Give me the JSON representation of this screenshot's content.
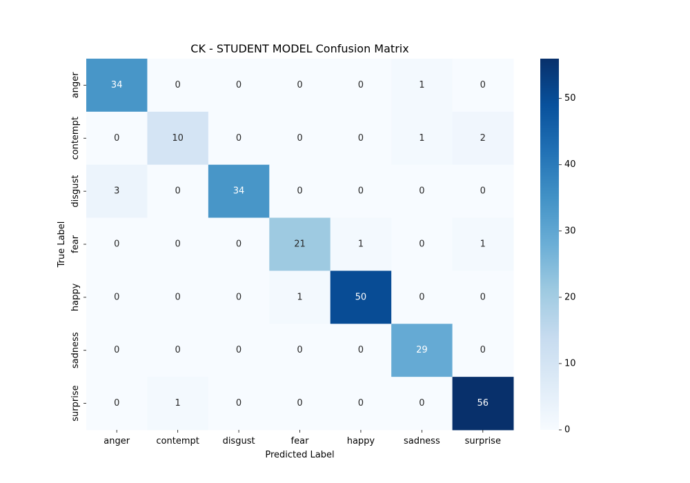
{
  "chart_data": {
    "type": "heatmap",
    "title": "CK - STUDENT MODEL Confusion Matrix",
    "xlabel": "Predicted Label",
    "ylabel": "True Label",
    "x_categories": [
      "anger",
      "contempt",
      "disgust",
      "fear",
      "happy",
      "sadness",
      "surprise"
    ],
    "y_categories": [
      "anger",
      "contempt",
      "disgust",
      "fear",
      "happy",
      "sadness",
      "surprise"
    ],
    "values": [
      [
        34,
        0,
        0,
        0,
        0,
        1,
        0
      ],
      [
        0,
        10,
        0,
        0,
        0,
        1,
        2
      ],
      [
        3,
        0,
        34,
        0,
        0,
        0,
        0
      ],
      [
        0,
        0,
        0,
        21,
        1,
        0,
        1
      ],
      [
        0,
        0,
        0,
        1,
        50,
        0,
        0
      ],
      [
        0,
        0,
        0,
        0,
        0,
        29,
        0
      ],
      [
        0,
        1,
        0,
        0,
        0,
        0,
        56
      ]
    ],
    "colorbar": {
      "colormap": "Blues",
      "vmin": 0,
      "vmax": 56,
      "ticks": [
        0,
        10,
        20,
        30,
        40,
        50
      ],
      "tick_labels": [
        "0",
        "10",
        "20",
        "30",
        "40",
        "50"
      ]
    }
  }
}
